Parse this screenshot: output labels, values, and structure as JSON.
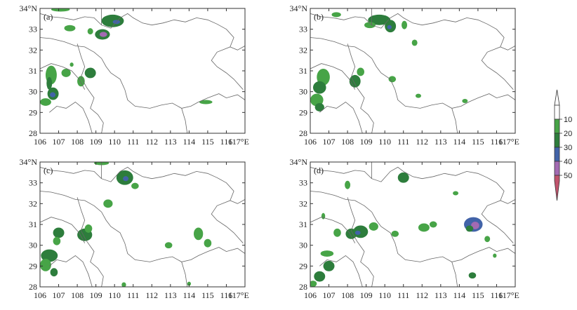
{
  "colors": {
    "c10": "#47a447",
    "c20": "#2d7d3c",
    "c30": "#4263a8",
    "c40": "#a36ab2",
    "c50": "#c0536c",
    "border": "#666666",
    "frame": "#333333"
  },
  "colorbar": {
    "ticks": [
      "10",
      "20",
      "30",
      "40",
      "50"
    ],
    "bands": [
      "white",
      "c10",
      "c20",
      "c30",
      "c40",
      "c50"
    ]
  },
  "axes": {
    "lon_labels": [
      "106",
      "107",
      "108",
      "109",
      "110",
      "111",
      "112",
      "113",
      "114",
      "115",
      "116",
      "117°E"
    ],
    "lat_labels": [
      "34°N",
      "33",
      "32",
      "31",
      "30",
      "29",
      "28"
    ],
    "lon_range": [
      106,
      117
    ],
    "lat_range": [
      28,
      34
    ]
  },
  "panels": [
    {
      "label": "(a)",
      "cells": [
        [
          107.1,
          33.95,
          0.5,
          0.1,
          10
        ],
        [
          107.6,
          33.05,
          0.3,
          0.15,
          10
        ],
        [
          108.7,
          32.9,
          0.15,
          0.15,
          10
        ],
        [
          109.35,
          32.75,
          0.4,
          0.25,
          20
        ],
        [
          109.4,
          32.75,
          0.2,
          0.12,
          40
        ],
        [
          109.9,
          33.4,
          0.6,
          0.3,
          20
        ],
        [
          110.1,
          33.35,
          0.2,
          0.1,
          30
        ],
        [
          106.6,
          30.8,
          0.3,
          0.45,
          10
        ],
        [
          106.5,
          30.4,
          0.15,
          0.3,
          20
        ],
        [
          106.7,
          29.9,
          0.3,
          0.3,
          20
        ],
        [
          106.68,
          29.85,
          0.15,
          0.12,
          30
        ],
        [
          106.3,
          29.5,
          0.3,
          0.18,
          10
        ],
        [
          107.4,
          30.9,
          0.25,
          0.2,
          10
        ],
        [
          108.2,
          30.5,
          0.2,
          0.25,
          10
        ],
        [
          108.7,
          30.9,
          0.3,
          0.25,
          20
        ],
        [
          114.9,
          29.5,
          0.35,
          0.1,
          10
        ],
        [
          107.7,
          31.3,
          0.1,
          0.1,
          10
        ]
      ]
    },
    {
      "label": "(b)",
      "cells": [
        [
          107.4,
          33.7,
          0.25,
          0.12,
          10
        ],
        [
          109.7,
          33.45,
          0.6,
          0.25,
          20
        ],
        [
          110.3,
          33.15,
          0.3,
          0.3,
          20
        ],
        [
          110.25,
          33.1,
          0.12,
          0.1,
          30
        ],
        [
          109.2,
          33.2,
          0.3,
          0.15,
          10
        ],
        [
          111.05,
          33.2,
          0.15,
          0.2,
          10
        ],
        [
          111.6,
          32.35,
          0.15,
          0.15,
          10
        ],
        [
          106.7,
          30.7,
          0.35,
          0.4,
          10
        ],
        [
          106.5,
          30.2,
          0.35,
          0.3,
          20
        ],
        [
          106.35,
          29.6,
          0.35,
          0.3,
          10
        ],
        [
          106.5,
          29.25,
          0.25,
          0.2,
          20
        ],
        [
          108.4,
          30.5,
          0.3,
          0.3,
          20
        ],
        [
          108.7,
          30.95,
          0.2,
          0.2,
          10
        ],
        [
          110.4,
          30.6,
          0.2,
          0.15,
          10
        ],
        [
          111.8,
          29.8,
          0.15,
          0.1,
          10
        ],
        [
          114.3,
          29.55,
          0.15,
          0.1,
          10
        ]
      ]
    },
    {
      "label": "(c)",
      "cells": [
        [
          109.3,
          33.95,
          0.4,
          0.1,
          10
        ],
        [
          110.55,
          33.25,
          0.45,
          0.35,
          20
        ],
        [
          110.6,
          33.2,
          0.15,
          0.12,
          30
        ],
        [
          111.1,
          32.85,
          0.2,
          0.15,
          10
        ],
        [
          109.65,
          32.0,
          0.25,
          0.2,
          10
        ],
        [
          107.0,
          30.6,
          0.3,
          0.25,
          20
        ],
        [
          106.9,
          30.2,
          0.2,
          0.2,
          10
        ],
        [
          106.5,
          29.5,
          0.45,
          0.3,
          20
        ],
        [
          106.3,
          29.05,
          0.3,
          0.3,
          10
        ],
        [
          106.75,
          28.7,
          0.2,
          0.2,
          20
        ],
        [
          108.4,
          30.5,
          0.4,
          0.3,
          20
        ],
        [
          108.6,
          30.8,
          0.2,
          0.2,
          10
        ],
        [
          112.9,
          30.0,
          0.2,
          0.15,
          10
        ],
        [
          114.5,
          30.55,
          0.25,
          0.3,
          10
        ],
        [
          115.0,
          30.1,
          0.2,
          0.2,
          10
        ],
        [
          110.5,
          28.1,
          0.12,
          0.12,
          10
        ],
        [
          114.0,
          28.15,
          0.1,
          0.1,
          10
        ]
      ]
    },
    {
      "label": "(d)",
      "cells": [
        [
          111.0,
          33.25,
          0.3,
          0.25,
          20
        ],
        [
          108.0,
          32.9,
          0.15,
          0.2,
          10
        ],
        [
          106.7,
          31.4,
          0.1,
          0.15,
          10
        ],
        [
          107.45,
          30.6,
          0.2,
          0.2,
          10
        ],
        [
          108.2,
          30.55,
          0.3,
          0.25,
          20
        ],
        [
          108.7,
          30.65,
          0.4,
          0.3,
          20
        ],
        [
          108.55,
          30.6,
          0.15,
          0.1,
          30
        ],
        [
          109.4,
          30.9,
          0.25,
          0.2,
          10
        ],
        [
          110.55,
          30.55,
          0.2,
          0.15,
          10
        ],
        [
          112.1,
          30.85,
          0.3,
          0.2,
          10
        ],
        [
          112.6,
          31.0,
          0.2,
          0.15,
          10
        ],
        [
          114.75,
          31.0,
          0.5,
          0.35,
          30
        ],
        [
          114.85,
          30.95,
          0.22,
          0.18,
          40
        ],
        [
          114.55,
          30.8,
          0.2,
          0.15,
          20
        ],
        [
          115.5,
          30.3,
          0.15,
          0.15,
          10
        ],
        [
          106.9,
          29.6,
          0.35,
          0.15,
          10
        ],
        [
          107.0,
          29.0,
          0.3,
          0.25,
          20
        ],
        [
          106.5,
          28.5,
          0.3,
          0.25,
          20
        ],
        [
          106.15,
          28.15,
          0.2,
          0.15,
          10
        ],
        [
          114.7,
          28.55,
          0.2,
          0.15,
          20
        ],
        [
          113.8,
          32.5,
          0.15,
          0.1,
          10
        ],
        [
          115.9,
          29.5,
          0.1,
          0.1,
          10
        ]
      ]
    }
  ]
}
